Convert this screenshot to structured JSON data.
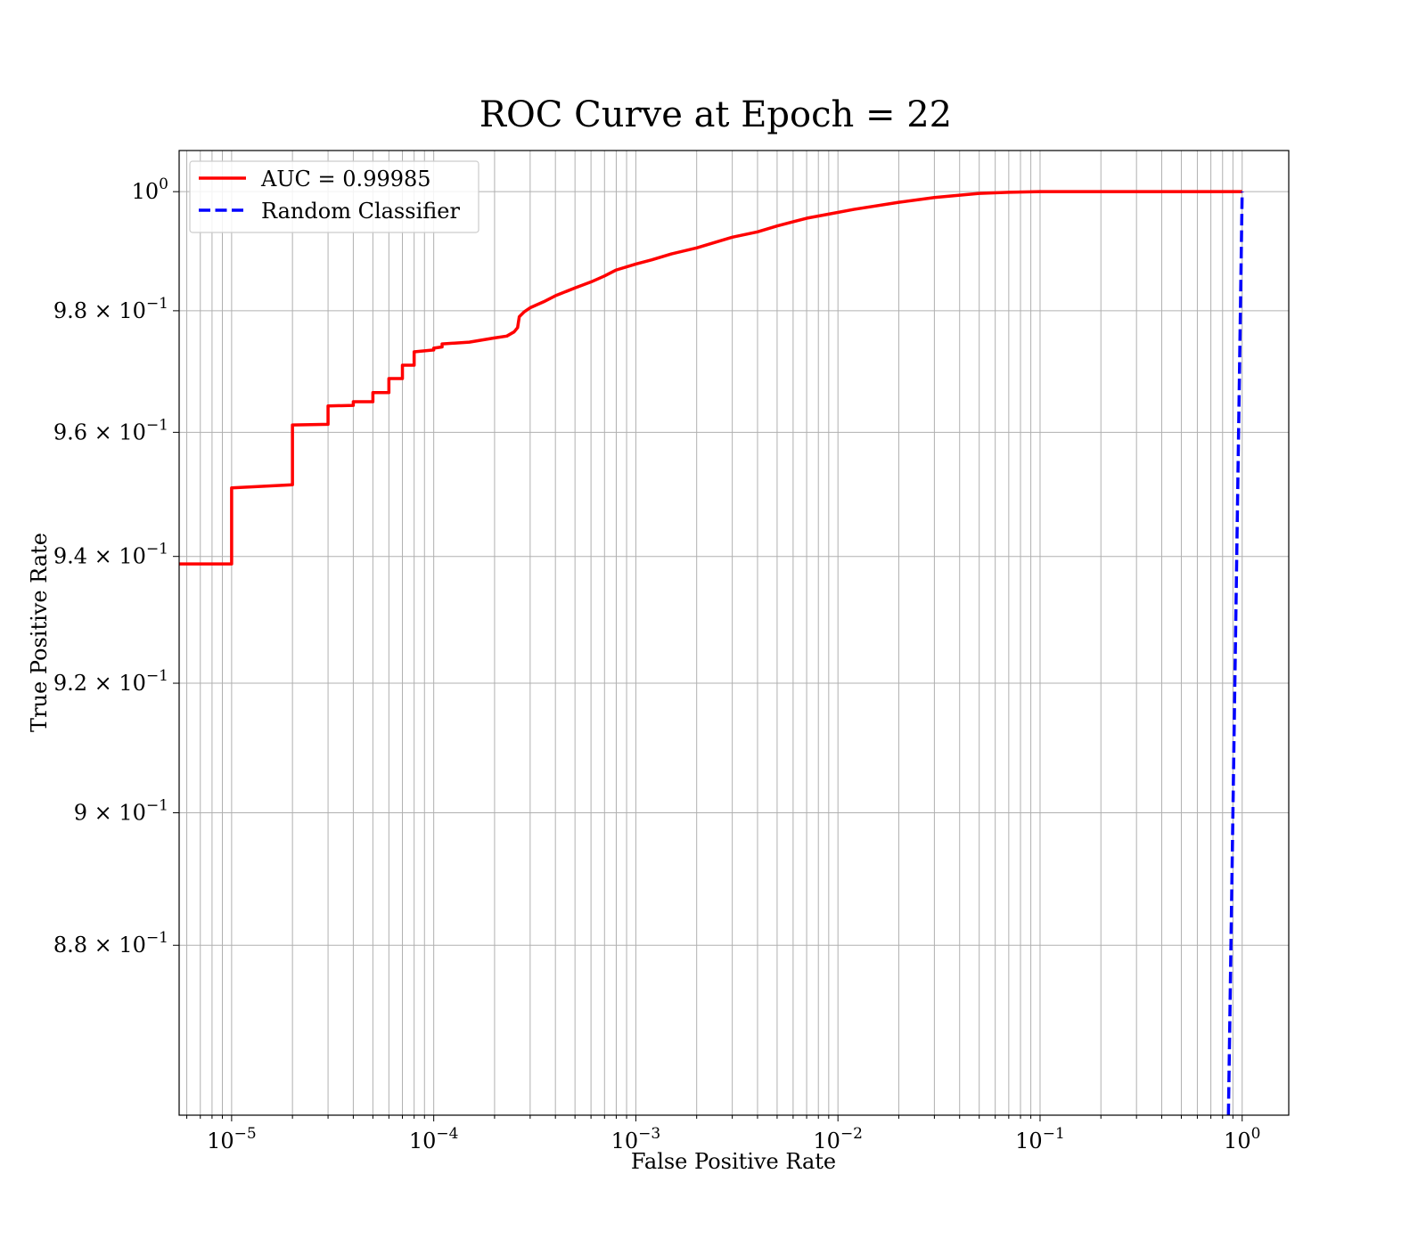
{
  "chart_data": {
    "type": "line",
    "title": "ROC Curve at Epoch = 22",
    "xlabel": "False Positive Rate",
    "ylabel": "True Positive Rate",
    "xscale": "log",
    "yscale": "log",
    "xlim": [
      5.5e-06,
      1.7
    ],
    "ylim": [
      0.855,
      1.007
    ],
    "grid": true,
    "grid_minor": true,
    "legend_position": "top-left",
    "x_ticks": [
      {
        "value": 1e-05,
        "base": "10",
        "exp": "−5"
      },
      {
        "value": 0.0001,
        "base": "10",
        "exp": "−4"
      },
      {
        "value": 0.001,
        "base": "10",
        "exp": "−3"
      },
      {
        "value": 0.01,
        "base": "10",
        "exp": "−2"
      },
      {
        "value": 0.1,
        "base": "10",
        "exp": "−1"
      },
      {
        "value": 1,
        "base": "10",
        "exp": "0"
      }
    ],
    "y_ticks": [
      {
        "value": 1.0,
        "mant": "",
        "base": "10",
        "exp": "0"
      },
      {
        "value": 0.98,
        "mant": "9.8",
        "base": "10",
        "exp": "−1"
      },
      {
        "value": 0.96,
        "mant": "9.6",
        "base": "10",
        "exp": "−1"
      },
      {
        "value": 0.94,
        "mant": "9.4",
        "base": "10",
        "exp": "−1"
      },
      {
        "value": 0.92,
        "mant": "9.2",
        "base": "10",
        "exp": "−1"
      },
      {
        "value": 0.9,
        "mant": "9",
        "base": "10",
        "exp": "−1"
      },
      {
        "value": 0.88,
        "mant": "8.8",
        "base": "10",
        "exp": "−1"
      }
    ],
    "series": [
      {
        "name": "AUC = 0.99985",
        "color": "#ff0000",
        "style": "solid",
        "x": [
          5.5e-06,
          1e-05,
          1e-05,
          2e-05,
          2e-05,
          3e-05,
          3e-05,
          4e-05,
          4e-05,
          5e-05,
          5e-05,
          6e-05,
          6e-05,
          7e-05,
          7e-05,
          8e-05,
          8e-05,
          0.0001,
          0.0001,
          0.00011,
          0.00011,
          0.00015,
          0.0002,
          0.00023,
          0.00025,
          0.00026,
          0.000265,
          0.00028,
          0.0003,
          0.00035,
          0.0004,
          0.0005,
          0.0006,
          0.0007,
          0.0008,
          0.001,
          0.0012,
          0.0015,
          0.002,
          0.0025,
          0.003,
          0.004,
          0.005,
          0.007,
          0.009,
          0.012,
          0.02,
          0.03,
          0.05,
          0.07,
          0.1,
          1.0
        ],
        "y": [
          0.9388,
          0.9388,
          0.951,
          0.9515,
          0.9612,
          0.9613,
          0.9643,
          0.9644,
          0.965,
          0.965,
          0.9665,
          0.9665,
          0.9688,
          0.9688,
          0.971,
          0.971,
          0.9732,
          0.9735,
          0.9738,
          0.974,
          0.9745,
          0.9748,
          0.9755,
          0.9758,
          0.9765,
          0.9772,
          0.979,
          0.9798,
          0.9805,
          0.9815,
          0.9825,
          0.9838,
          0.9848,
          0.9858,
          0.9868,
          0.9878,
          0.9885,
          0.9895,
          0.9905,
          0.9915,
          0.9923,
          0.9932,
          0.9942,
          0.9955,
          0.9962,
          0.997,
          0.9982,
          0.999,
          0.9997,
          0.9999,
          1.0,
          1.0
        ]
      },
      {
        "name": "Random Classifier",
        "color": "#0000ff",
        "style": "dashed",
        "x": [
          0.855,
          1.0
        ],
        "y": [
          0.855,
          1.0
        ]
      }
    ]
  }
}
